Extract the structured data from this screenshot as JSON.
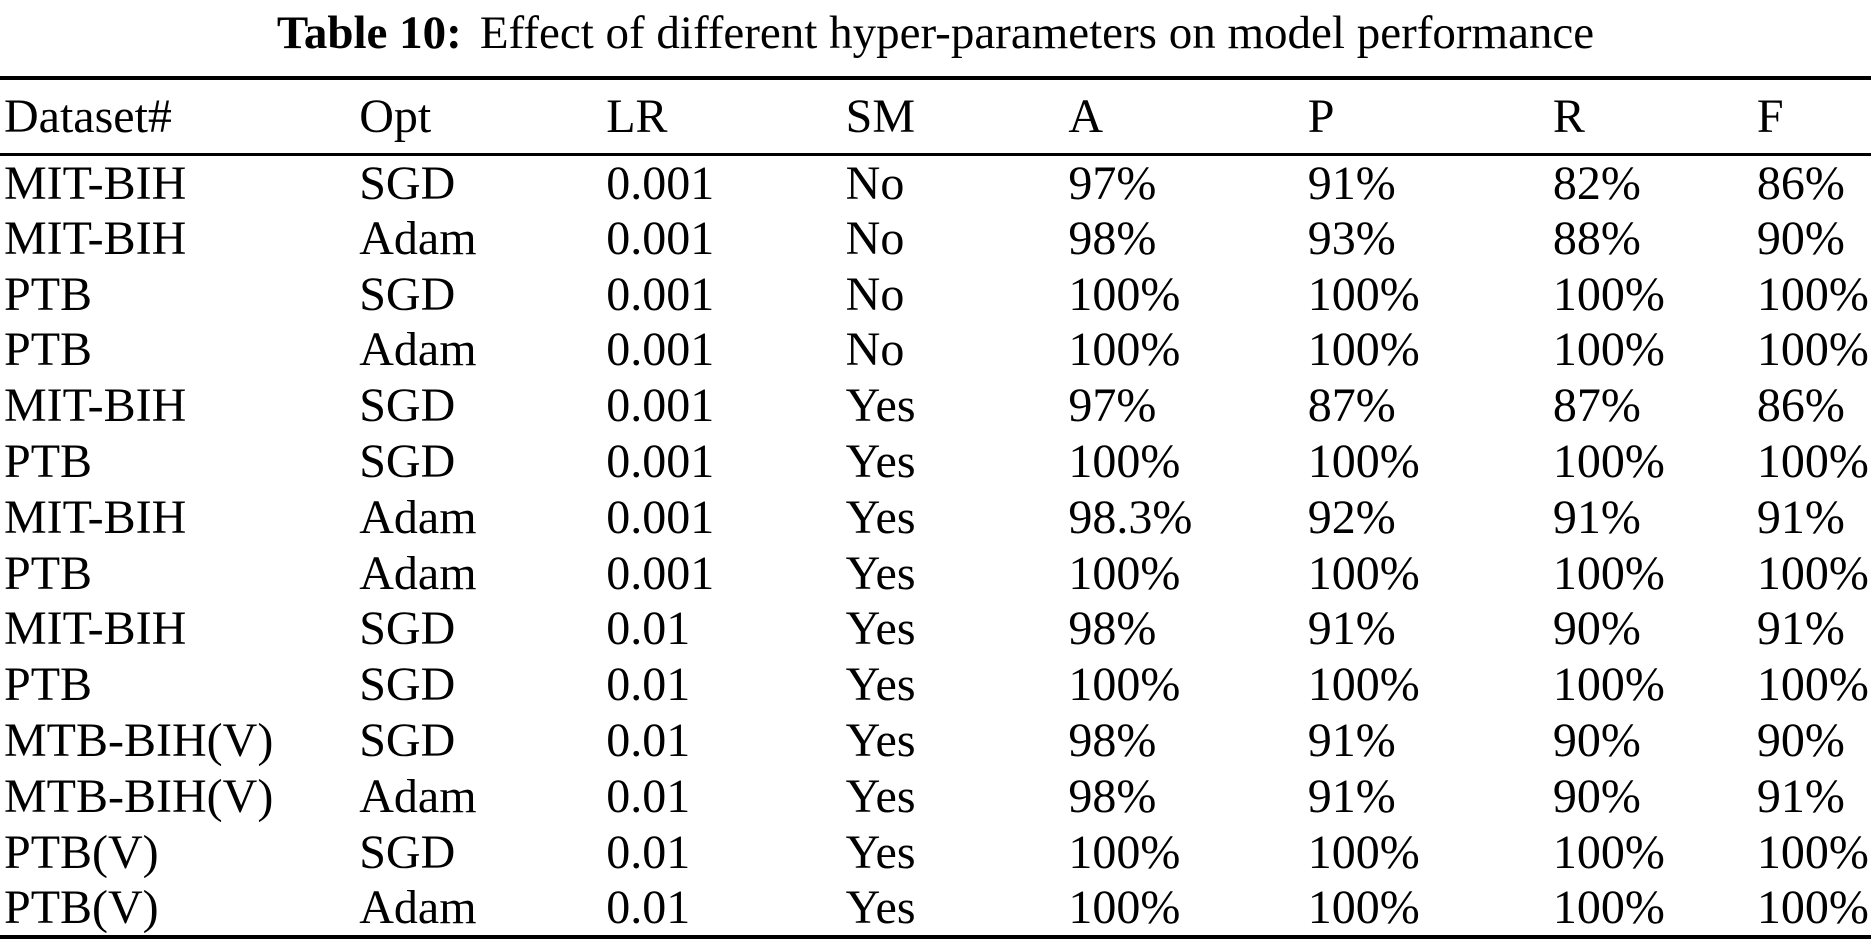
{
  "page": {
    "background_color": "#ffffff",
    "text_color": "#000000"
  },
  "caption": {
    "label": "Table 10:",
    "text": "Effect of different hyper-parameters on model performance"
  },
  "table": {
    "headers": [
      "Dataset#",
      "Opt",
      "LR",
      "SM",
      "A",
      "P",
      "R",
      "F"
    ],
    "column_width_percents": [
      19.2,
      13.2,
      12.8,
      11.9,
      12.8,
      13.1,
      10.9,
      6.1
    ],
    "rows": [
      [
        "MIT-BIH",
        "SGD",
        "0.001",
        "No",
        "97%",
        "91%",
        "82%",
        "86%"
      ],
      [
        "MIT-BIH",
        "Adam",
        "0.001",
        "No",
        "98%",
        "93%",
        "88%",
        "90%"
      ],
      [
        "PTB",
        "SGD",
        "0.001",
        "No",
        "100%",
        "100%",
        "100%",
        "100%"
      ],
      [
        "PTB",
        "Adam",
        "0.001",
        "No",
        "100%",
        "100%",
        "100%",
        "100%"
      ],
      [
        "MIT-BIH",
        "SGD",
        "0.001",
        "Yes",
        "97%",
        "87%",
        "87%",
        "86%"
      ],
      [
        "PTB",
        "SGD",
        "0.001",
        "Yes",
        "100%",
        "100%",
        "100%",
        "100%"
      ],
      [
        "MIT-BIH",
        "Adam",
        "0.001",
        "Yes",
        "98.3%",
        "92%",
        "91%",
        "91%"
      ],
      [
        "PTB",
        "Adam",
        "0.001",
        "Yes",
        "100%",
        "100%",
        "100%",
        "100%"
      ],
      [
        "MIT-BIH",
        "SGD",
        "0.01",
        "Yes",
        "98%",
        "91%",
        "90%",
        "91%"
      ],
      [
        "PTB",
        "SGD",
        "0.01",
        "Yes",
        "100%",
        "100%",
        "100%",
        "100%"
      ],
      [
        "MTB-BIH(V)",
        "SGD",
        "0.01",
        "Yes",
        "98%",
        "91%",
        "90%",
        "90%"
      ],
      [
        "MTB-BIH(V)",
        "Adam",
        "0.01",
        "Yes",
        "98%",
        "91%",
        "90%",
        "91%"
      ],
      [
        "PTB(V)",
        "SGD",
        "0.01",
        "Yes",
        "100%",
        "100%",
        "100%",
        "100%"
      ],
      [
        "PTB(V)",
        "Adam",
        "0.01",
        "Yes",
        "100%",
        "100%",
        "100%",
        "100%"
      ]
    ]
  }
}
